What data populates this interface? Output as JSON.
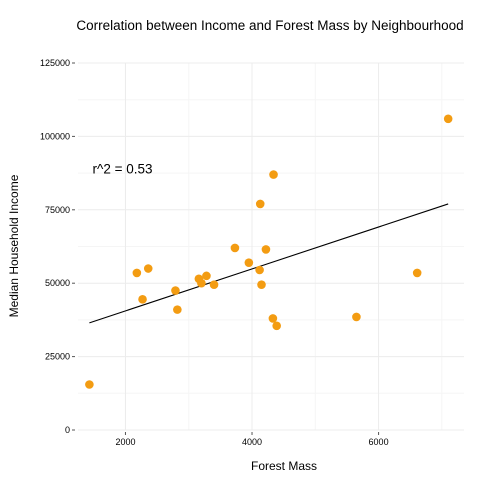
{
  "chart_data": {
    "type": "scatter",
    "title": "Correlation between Income and Forest Mass by Neighbourhood",
    "xlabel": "Forest Mass",
    "ylabel": "Median Household Income",
    "xlim": [
      1250,
      7350
    ],
    "ylim": [
      0,
      125000
    ],
    "x_ticks": [
      2000,
      4000,
      6000
    ],
    "y_ticks": [
      0,
      25000,
      50000,
      75000,
      100000,
      125000
    ],
    "x_tick_labels": [
      "2000",
      "4000",
      "6000"
    ],
    "y_tick_labels": [
      "0",
      "25000",
      "50000",
      "75000",
      "100000",
      "125000"
    ],
    "grid": true,
    "point_color": "#f39c12",
    "points": [
      {
        "x": 1430,
        "y": 15500
      },
      {
        "x": 2180,
        "y": 53500
      },
      {
        "x": 2270,
        "y": 44500
      },
      {
        "x": 2360,
        "y": 55000
      },
      {
        "x": 2790,
        "y": 47500
      },
      {
        "x": 2820,
        "y": 41000
      },
      {
        "x": 3160,
        "y": 51500
      },
      {
        "x": 3200,
        "y": 50000
      },
      {
        "x": 3280,
        "y": 52500
      },
      {
        "x": 3400,
        "y": 49500
      },
      {
        "x": 3730,
        "y": 62000
      },
      {
        "x": 3950,
        "y": 57000
      },
      {
        "x": 4120,
        "y": 54500
      },
      {
        "x": 4130,
        "y": 77000
      },
      {
        "x": 4150,
        "y": 49500
      },
      {
        "x": 4220,
        "y": 61500
      },
      {
        "x": 4330,
        "y": 38000
      },
      {
        "x": 4340,
        "y": 87000
      },
      {
        "x": 4390,
        "y": 35500
      },
      {
        "x": 5650,
        "y": 38500
      },
      {
        "x": 6610,
        "y": 53500
      },
      {
        "x": 7100,
        "y": 106000
      }
    ],
    "trend_line": {
      "x": [
        1430,
        7100
      ],
      "y": [
        36500,
        77000
      ]
    },
    "annotation": {
      "text": "r^2 = 0.53",
      "x": 1480,
      "y": 89000
    }
  }
}
